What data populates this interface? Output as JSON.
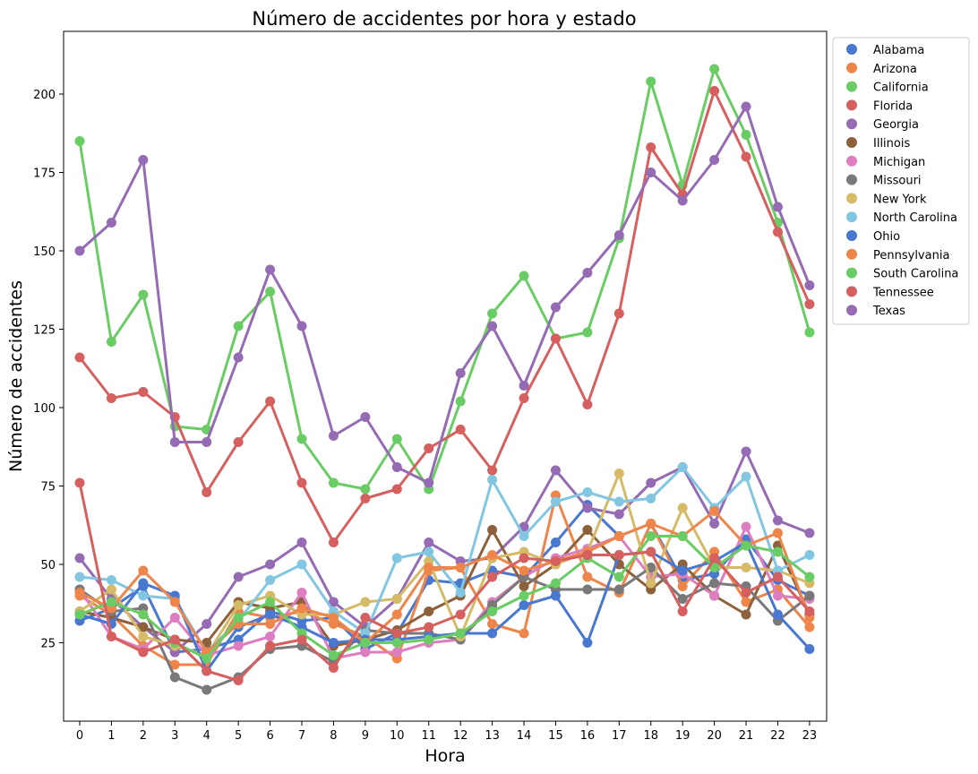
{
  "chart_data": {
    "type": "line",
    "title": "Número de accidentes por hora y estado",
    "xlabel": "Hora",
    "ylabel": "Número de accidentes",
    "x": [
      0,
      1,
      2,
      3,
      4,
      5,
      6,
      7,
      8,
      9,
      10,
      11,
      12,
      13,
      14,
      15,
      16,
      17,
      18,
      19,
      20,
      21,
      22,
      23
    ],
    "x_tick_labels": [
      "0",
      "1",
      "2",
      "3",
      "4",
      "5",
      "6",
      "7",
      "8",
      "9",
      "10",
      "11",
      "12",
      "13",
      "14",
      "15",
      "16",
      "17",
      "18",
      "19",
      "20",
      "21",
      "22",
      "23"
    ],
    "ylim": [
      0,
      220
    ],
    "y_ticks": [
      25,
      50,
      75,
      100,
      125,
      150,
      175,
      200
    ],
    "y_tick_labels": [
      "25",
      "50",
      "75",
      "100",
      "125",
      "150",
      "175",
      "200"
    ],
    "grid": false,
    "legend_position": "outside-top-right",
    "series": [
      {
        "name": "Alabama",
        "color": "#4878d0",
        "values": [
          32,
          36,
          43,
          22,
          23,
          26,
          35,
          32,
          33,
          23,
          28,
          45,
          44,
          48,
          46,
          57,
          69,
          59,
          63,
          45,
          47,
          58,
          45,
          40
        ]
      },
      {
        "name": "Arizona",
        "color": "#ee854a",
        "values": [
          40,
          34,
          24,
          18,
          18,
          35,
          33,
          35,
          31,
          27,
          20,
          48,
          49,
          31,
          28,
          72,
          46,
          41,
          63,
          43,
          54,
          38,
          42,
          30
        ]
      },
      {
        "name": "California",
        "color": "#6acc64",
        "values": [
          185,
          121,
          136,
          94,
          93,
          126,
          137,
          90,
          76,
          74,
          90,
          74,
          102,
          130,
          142,
          122,
          124,
          154,
          204,
          171,
          208,
          187,
          159,
          124
        ]
      },
      {
        "name": "Florida",
        "color": "#d65f5f",
        "values": [
          116,
          103,
          105,
          97,
          73,
          89,
          102,
          76,
          57,
          71,
          74,
          87,
          93,
          80,
          103,
          122,
          101,
          130,
          183,
          168,
          201,
          180,
          156,
          133
        ]
      },
      {
        "name": "Georgia",
        "color": "#956cb4",
        "values": [
          52,
          39,
          30,
          22,
          31,
          46,
          50,
          57,
          38,
          30,
          39,
          57,
          51,
          52,
          62,
          80,
          68,
          66,
          76,
          81,
          63,
          86,
          64,
          60
        ]
      },
      {
        "name": "Illinois",
        "color": "#8c613c",
        "values": [
          35,
          33,
          30,
          26,
          25,
          38,
          36,
          38,
          24,
          26,
          29,
          35,
          40,
          61,
          43,
          50,
          61,
          50,
          42,
          50,
          40,
          34,
          56,
          34
        ]
      },
      {
        "name": "Michigan",
        "color": "#dc7ec0",
        "values": [
          42,
          27,
          23,
          33,
          21,
          24,
          27,
          41,
          20,
          22,
          22,
          25,
          26,
          38,
          46,
          52,
          55,
          59,
          46,
          47,
          40,
          62,
          40,
          39
        ]
      },
      {
        "name": "Missouri",
        "color": "#797979",
        "values": [
          42,
          35,
          36,
          14,
          10,
          14,
          23,
          24,
          19,
          29,
          28,
          28,
          26,
          37,
          46,
          42,
          42,
          42,
          49,
          39,
          44,
          43,
          32,
          40
        ]
      },
      {
        "name": "New York",
        "color": "#d5bb67",
        "values": [
          35,
          42,
          27,
          24,
          21,
          37,
          40,
          34,
          34,
          38,
          39,
          51,
          27,
          52,
          54,
          50,
          54,
          79,
          44,
          68,
          49,
          49,
          48,
          44
        ]
      },
      {
        "name": "North Carolina",
        "color": "#82c6e2",
        "values": [
          46,
          45,
          40,
          39,
          22,
          32,
          45,
          50,
          35,
          28,
          52,
          54,
          41,
          77,
          59,
          70,
          73,
          70,
          71,
          81,
          68,
          78,
          48,
          53
        ]
      },
      {
        "name": "Ohio",
        "color": "#4878d0",
        "values": [
          34,
          31,
          44,
          40,
          16,
          30,
          34,
          30,
          25,
          26,
          26,
          27,
          28,
          28,
          37,
          40,
          25,
          53,
          54,
          48,
          51,
          57,
          34,
          23
        ]
      },
      {
        "name": "Pennsylvania",
        "color": "#ee854a",
        "values": [
          41,
          36,
          48,
          38,
          22,
          31,
          31,
          36,
          33,
          25,
          34,
          49,
          49,
          53,
          48,
          51,
          54,
          59,
          63,
          59,
          67,
          56,
          60,
          33
        ]
      },
      {
        "name": "South Carolina",
        "color": "#6acc64",
        "values": [
          34,
          38,
          34,
          25,
          20,
          33,
          38,
          28,
          21,
          25,
          25,
          26,
          28,
          35,
          40,
          44,
          52,
          46,
          59,
          59,
          49,
          56,
          54,
          46
        ]
      },
      {
        "name": "Tennessee",
        "color": "#d65f5f",
        "values": [
          76,
          27,
          22,
          26,
          16,
          13,
          24,
          26,
          17,
          33,
          28,
          30,
          34,
          46,
          52,
          51,
          53,
          53,
          54,
          35,
          52,
          41,
          46,
          35
        ]
      },
      {
        "name": "Texas",
        "color": "#956cb4",
        "values": [
          150,
          159,
          179,
          89,
          89,
          116,
          144,
          126,
          91,
          97,
          81,
          76,
          111,
          126,
          107,
          132,
          143,
          155,
          175,
          166,
          179,
          196,
          164,
          139
        ]
      }
    ]
  }
}
